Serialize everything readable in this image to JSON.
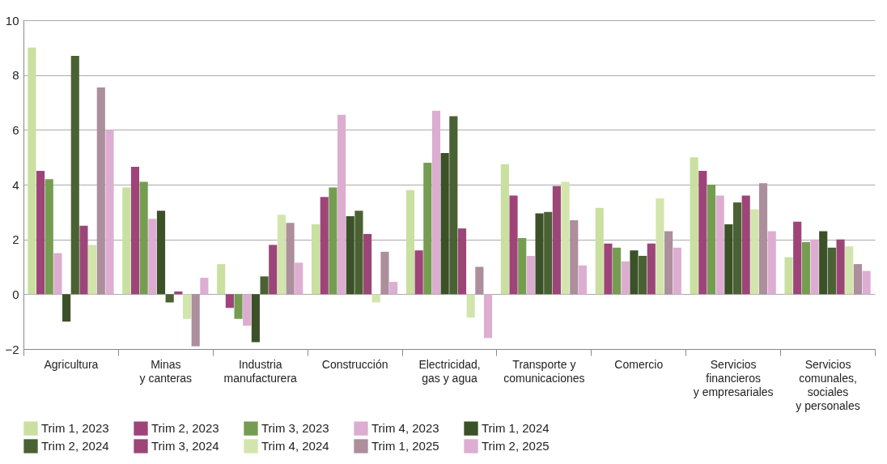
{
  "chart_data": {
    "type": "bar",
    "categories": [
      "Agricultura",
      "Minas\ny canteras",
      "Industria\nmanufacturera",
      "Construcción",
      "Electricidad,\ngas y agua",
      "Transporte y\ncomunicaciones",
      "Comercio",
      "Servicios\nfinancieros\ny empresariales",
      "Servicios\ncomunales,\nsociales\ny personales"
    ],
    "series": [
      {
        "name": "Trim 1, 2023",
        "color": "#c9e0a0",
        "values": [
          9.0,
          3.9,
          1.1,
          2.55,
          3.8,
          4.75,
          3.15,
          5.0,
          1.35
        ]
      },
      {
        "name": "Trim 2, 2023",
        "color": "#9e4479",
        "values": [
          4.5,
          4.65,
          -0.5,
          3.55,
          1.6,
          3.6,
          1.85,
          4.5,
          2.65
        ]
      },
      {
        "name": "Trim 3, 2023",
        "color": "#759d51",
        "values": [
          4.2,
          4.1,
          -0.9,
          3.9,
          4.8,
          2.05,
          1.7,
          4.0,
          1.9
        ]
      },
      {
        "name": "Trim 4, 2023",
        "color": "#dcadd0",
        "values": [
          1.5,
          2.75,
          -1.15,
          6.55,
          6.7,
          1.4,
          1.2,
          3.6,
          2.0
        ]
      },
      {
        "name": "Trim 1, 2024",
        "color": "#3b5127",
        "values": [
          -1.0,
          3.05,
          -1.75,
          2.85,
          5.15,
          2.95,
          1.6,
          2.55,
          2.3
        ]
      },
      {
        "name": "Trim 2, 2024",
        "color": "#4a6233",
        "values": [
          8.7,
          -0.3,
          0.65,
          3.05,
          6.5,
          3.0,
          1.4,
          3.35,
          1.7
        ]
      },
      {
        "name": "Trim 3, 2024",
        "color": "#9b4677",
        "values": [
          2.5,
          0.1,
          1.8,
          2.2,
          2.4,
          3.95,
          1.85,
          3.6,
          2.0
        ]
      },
      {
        "name": "Trim 4, 2024",
        "color": "#d2e5ad",
        "values": [
          1.8,
          -0.9,
          2.9,
          -0.3,
          -0.85,
          4.1,
          3.5,
          3.1,
          1.75
        ]
      },
      {
        "name": "Trim 1, 2025",
        "color": "#ac8e9c",
        "values": [
          7.55,
          -1.9,
          2.6,
          1.55,
          1.0,
          2.7,
          2.3,
          4.05,
          1.1
        ]
      },
      {
        "name": "Trim 2, 2025",
        "color": "#ddaed2",
        "values": [
          6.0,
          0.6,
          1.15,
          0.45,
          -1.6,
          1.05,
          1.7,
          2.3,
          0.85
        ]
      }
    ],
    "ylim": [
      -2,
      10
    ],
    "yticks": [
      -2,
      0,
      2,
      4,
      6,
      8,
      10
    ],
    "grid": "y",
    "legend": "bottom"
  }
}
